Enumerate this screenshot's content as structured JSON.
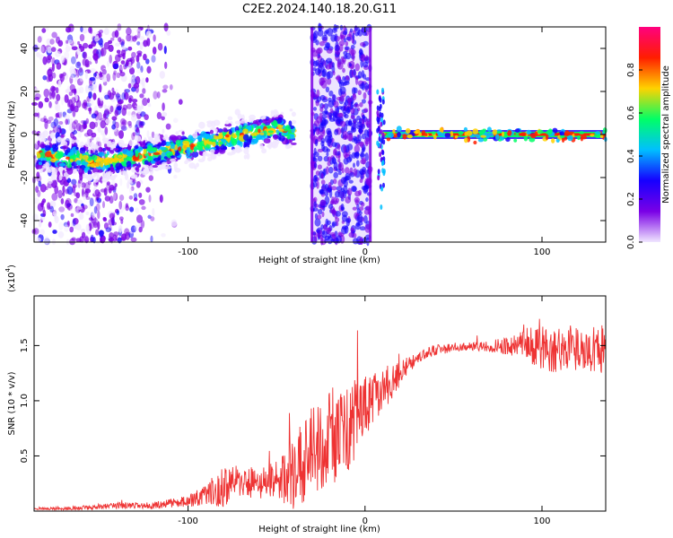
{
  "title": "C2E2.2024.140.18.20.G11",
  "chart_data": [
    {
      "type": "heatmap",
      "xlabel": "Height of straight line (km)",
      "ylabel": "Frequency (Hz)",
      "xlim": [
        -187,
        136
      ],
      "ylim": [
        -50,
        50
      ],
      "xticks": [
        -100,
        0,
        100
      ],
      "yticks": [
        -40,
        -20,
        0,
        20,
        40
      ],
      "colorbar": {
        "label": "Normalized spectral amplitude",
        "range": [
          0,
          1
        ],
        "ticks": [
          "0.0",
          "0.2",
          "0.4",
          "0.6",
          "0.8"
        ],
        "colors": [
          "#f0e6ff",
          "#7a00e6",
          "#1600ff",
          "#00bfff",
          "#00ff66",
          "#ffd200",
          "#ff1e00",
          "#ff007f"
        ]
      },
      "features": [
        {
          "kind": "scattered noise",
          "x_range": [
            -187,
            -125
          ],
          "freq_range": [
            -50,
            50
          ]
        },
        {
          "kind": "drifting trace",
          "x": [
            -185,
            -150,
            -120,
            -90,
            -70,
            -50,
            -40
          ],
          "freq": [
            -9,
            -13,
            -9,
            -4,
            0,
            3,
            1
          ]
        },
        {
          "kind": "noise band",
          "x_range": [
            -30,
            3
          ],
          "freq_range": [
            -50,
            50
          ]
        },
        {
          "kind": "steady trace",
          "x_range": [
            10,
            136
          ],
          "freq": 0
        }
      ]
    },
    {
      "type": "line",
      "xlabel": "Height of straight line (km)",
      "ylabel": "SNR (10 * v/v)",
      "y_multiplier": "(x10",
      "y_multiplier_exp": "4",
      "xlim": [
        -187,
        136
      ],
      "ylim": [
        0,
        1.95
      ],
      "xticks": [
        -100,
        0,
        100
      ],
      "yticks": [
        "0.5",
        "1.0",
        "1.5"
      ],
      "series_color": "#ee3333",
      "x": [
        -187,
        -160,
        -140,
        -120,
        -100,
        -90,
        -80,
        -70,
        -60,
        -50,
        -40,
        -30,
        -20,
        -10,
        0,
        10,
        20,
        30,
        40,
        50,
        60,
        70,
        80,
        90,
        100,
        110,
        120,
        136
      ],
      "y": [
        0.02,
        0.03,
        0.05,
        0.05,
        0.09,
        0.14,
        0.22,
        0.28,
        0.24,
        0.27,
        0.35,
        0.55,
        0.65,
        0.75,
        0.95,
        1.1,
        1.25,
        1.4,
        1.46,
        1.48,
        1.49,
        1.49,
        1.5,
        1.51,
        1.48,
        1.47,
        1.46,
        1.47
      ],
      "noise": [
        0.01,
        0.02,
        0.03,
        0.03,
        0.05,
        0.1,
        0.2,
        0.15,
        0.15,
        0.2,
        0.35,
        0.4,
        0.45,
        0.4,
        0.3,
        0.2,
        0.12,
        0.06,
        0.05,
        0.04,
        0.04,
        0.05,
        0.08,
        0.15,
        0.2,
        0.22,
        0.22,
        0.22
      ]
    }
  ]
}
